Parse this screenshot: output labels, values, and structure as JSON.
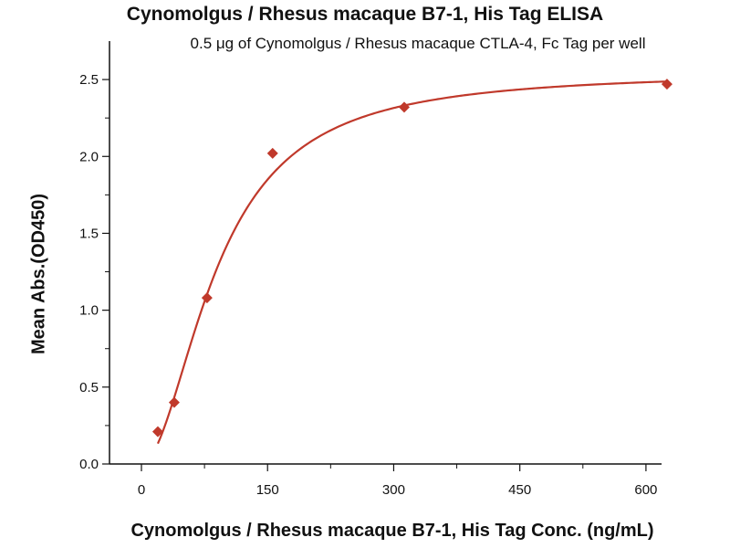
{
  "chart_data": {
    "type": "scatter",
    "title": "Cynomolgus / Rhesus macaque B7-1, His Tag ELISA",
    "subtitle": "0.5 μg of Cynomolgus / Rhesus macaque CTLA-4, Fc Tag per well",
    "xlabel": "Cynomolgus / Rhesus macaque B7-1, His Tag Conc. (ng/mL)",
    "ylabel": "Mean Abs.(OD450)",
    "xlim": [
      -100,
      680
    ],
    "ylim": [
      0,
      2.75
    ],
    "x_ticks": [
      "0",
      "150",
      "300",
      "450",
      "600"
    ],
    "y_ticks": [
      "0.0",
      "0.5",
      "1.0",
      "1.5",
      "2.0",
      "2.5"
    ],
    "grid": false,
    "series": [
      {
        "marker": "diamond",
        "color": "#c0392b",
        "points": [
          {
            "x": 19.5,
            "y": 0.21
          },
          {
            "x": 39,
            "y": 0.4
          },
          {
            "x": 78,
            "y": 1.08
          },
          {
            "x": 156,
            "y": 2.02
          },
          {
            "x": 312.5,
            "y": 2.32
          },
          {
            "x": 625,
            "y": 2.47
          }
        ]
      }
    ],
    "fit_curve": {
      "type": "4PL",
      "color": "#c0392b",
      "bottom": 0.0,
      "top": 2.55,
      "ec50": 90,
      "hill": 1.9
    }
  }
}
